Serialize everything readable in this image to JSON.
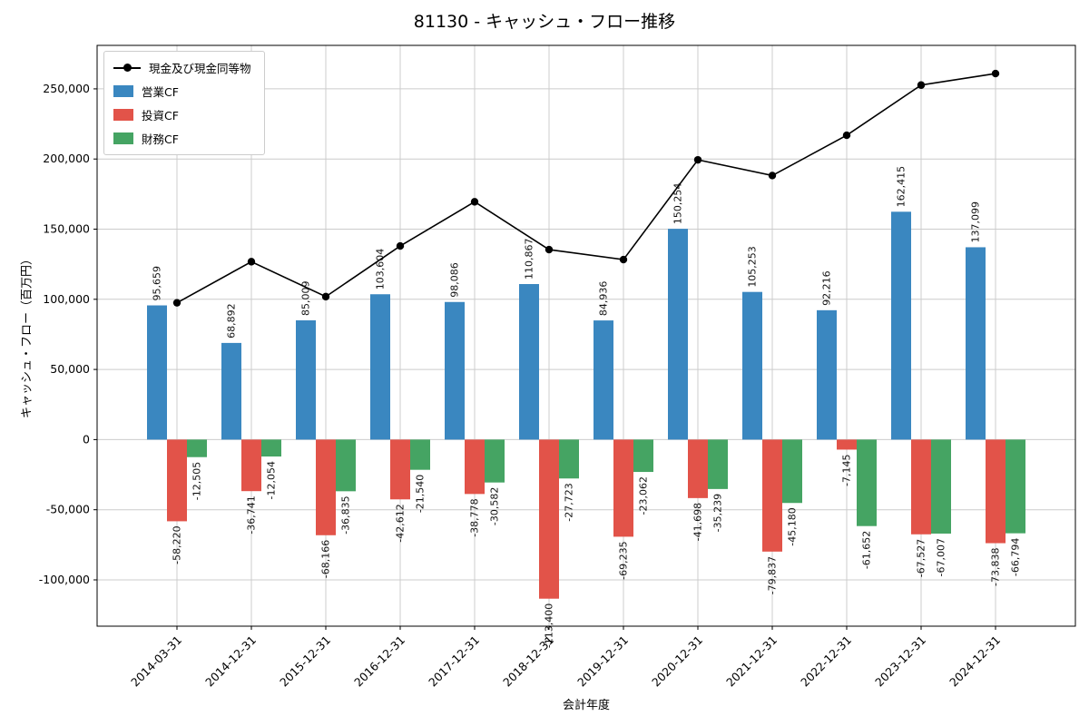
{
  "chart_data": {
    "type": "bar",
    "title": "81130 - キャッシュ・フロー推移",
    "xlabel": "会計年度",
    "ylabel": "キャッシュ・フロー（百万円）",
    "categories": [
      "2014-03-31",
      "2014-12-31",
      "2015-12-31",
      "2016-12-31",
      "2017-12-31",
      "2018-12-31",
      "2019-12-31",
      "2020-12-31",
      "2021-12-31",
      "2022-12-31",
      "2023-12-31",
      "2024-12-31"
    ],
    "bar_series": [
      {
        "name": "営業CF",
        "color": "#3a87c0",
        "values": [
          95659,
          68892,
          85009,
          103604,
          98086,
          110867,
          84936,
          150254,
          105253,
          92216,
          162415,
          137099
        ]
      },
      {
        "name": "投資CF",
        "color": "#e25349",
        "values": [
          -58220,
          -36741,
          -68166,
          -42612,
          -38778,
          -113400,
          -69235,
          -41698,
          -79837,
          -7145,
          -67527,
          -73838
        ]
      },
      {
        "name": "財務CF",
        "color": "#45a463",
        "values": [
          -12505,
          -12054,
          -36835,
          -21540,
          -30582,
          -27723,
          -23062,
          -35239,
          -45180,
          -61652,
          -67007,
          -66794
        ]
      }
    ],
    "line_series": {
      "name": "現金及び現金同等物",
      "color": "#000000",
      "values": [
        97500,
        126800,
        101900,
        138000,
        169500,
        135400,
        128300,
        199400,
        188200,
        216900,
        252700,
        260900
      ]
    },
    "ylim": [
      -133000,
      281000
    ],
    "yticks": [
      -100000,
      -50000,
      0,
      50000,
      100000,
      150000,
      200000,
      250000
    ],
    "grid": true,
    "grid_color": "#cccccc",
    "legend_position": "upper left"
  }
}
